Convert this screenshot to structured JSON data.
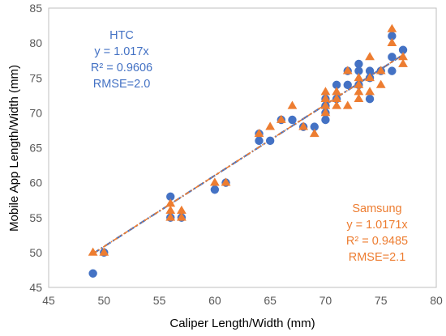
{
  "chart_data": {
    "type": "scatter",
    "xlabel": "Caliper Length/Width (mm)",
    "ylabel": "Mobile App Length/Width (mm)",
    "xlim": [
      45,
      80
    ],
    "ylim": [
      45,
      85
    ],
    "xticks": [
      45,
      50,
      55,
      60,
      65,
      70,
      75,
      80
    ],
    "yticks": [
      45,
      50,
      55,
      60,
      65,
      70,
      75,
      80,
      85
    ],
    "grid": false,
    "series": [
      {
        "marker": "circle",
        "color": "#4472C4",
        "trendline_slope": 1.017,
        "points": [
          [
            49,
            47
          ],
          [
            50,
            50
          ],
          [
            56,
            58
          ],
          [
            56,
            55
          ],
          [
            57,
            55
          ],
          [
            60,
            59
          ],
          [
            61,
            60
          ],
          [
            64,
            67
          ],
          [
            64,
            66
          ],
          [
            65,
            66
          ],
          [
            66,
            69
          ],
          [
            67,
            69
          ],
          [
            68,
            68
          ],
          [
            69,
            68
          ],
          [
            70,
            72
          ],
          [
            70,
            71
          ],
          [
            70,
            70
          ],
          [
            70,
            69
          ],
          [
            71,
            74
          ],
          [
            71,
            72
          ],
          [
            72,
            76
          ],
          [
            72,
            74
          ],
          [
            73,
            77
          ],
          [
            73,
            76
          ],
          [
            73,
            74
          ],
          [
            74,
            76
          ],
          [
            74,
            75
          ],
          [
            74,
            72
          ],
          [
            75,
            76
          ],
          [
            76,
            81
          ],
          [
            76,
            78
          ],
          [
            76,
            76
          ],
          [
            77,
            79
          ]
        ]
      },
      {
        "marker": "triangle",
        "color": "#ED7D31",
        "trendline_slope": 1.0171,
        "points": [
          [
            49,
            50
          ],
          [
            50,
            50
          ],
          [
            56,
            57
          ],
          [
            56,
            56
          ],
          [
            56,
            55
          ],
          [
            57,
            56
          ],
          [
            57,
            55
          ],
          [
            60,
            60
          ],
          [
            61,
            60
          ],
          [
            64,
            67
          ],
          [
            65,
            68
          ],
          [
            66,
            69
          ],
          [
            67,
            71
          ],
          [
            68,
            68
          ],
          [
            69,
            67
          ],
          [
            70,
            73
          ],
          [
            70,
            72
          ],
          [
            70,
            71
          ],
          [
            70,
            70
          ],
          [
            71,
            73
          ],
          [
            71,
            72
          ],
          [
            71,
            71
          ],
          [
            72,
            76
          ],
          [
            72,
            71
          ],
          [
            73,
            75
          ],
          [
            73,
            74
          ],
          [
            73,
            73
          ],
          [
            73,
            72
          ],
          [
            74,
            78
          ],
          [
            74,
            75
          ],
          [
            74,
            73
          ],
          [
            75,
            76
          ],
          [
            75,
            74
          ],
          [
            76,
            82
          ],
          [
            76,
            80
          ],
          [
            77,
            78
          ],
          [
            77,
            77
          ]
        ]
      }
    ],
    "annotations": {
      "htc": [
        "HTC",
        "y = 1.017x",
        "R² = 0.9606",
        "RMSE=2.0"
      ],
      "samsung": [
        "Samsung",
        "y = 1.0171x",
        "R² = 0.9485",
        "RMSE=2.1"
      ]
    }
  }
}
